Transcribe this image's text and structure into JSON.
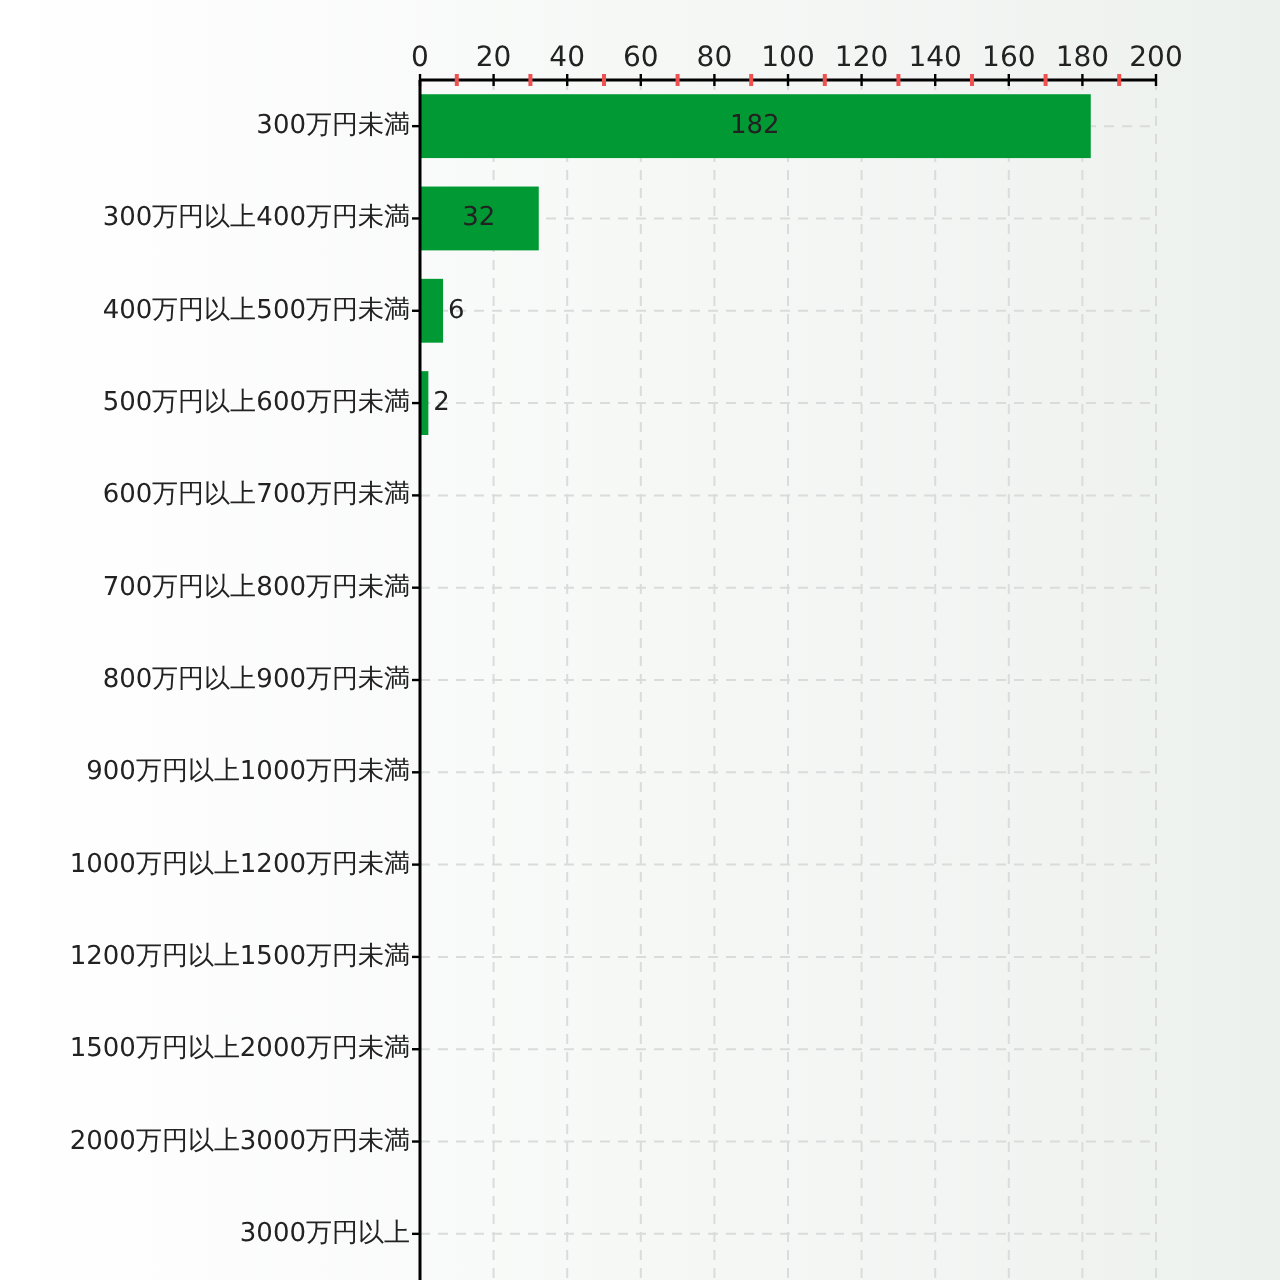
{
  "chart_data": {
    "type": "bar",
    "orientation": "horizontal",
    "categories": [
      "300万円未満",
      "300万円以上400万円未満",
      "400万円以上500万円未満",
      "500万円以上600万円未満",
      "600万円以上700万円未満",
      "700万円以上800万円未満",
      "800万円以上900万円未満",
      "900万円以上1000万円未満",
      "1000万円以上1200万円未満",
      "1200万円以上1500万円未満",
      "1500万円以上2000万円未満",
      "2000万円以上3000万円未満",
      "3000万円以上"
    ],
    "values": [
      182,
      32,
      6,
      2,
      0,
      0,
      0,
      0,
      0,
      0,
      0,
      0,
      0
    ],
    "value_labels": [
      "182",
      "32",
      "6",
      "2",
      null,
      null,
      null,
      null,
      null,
      null,
      null,
      null,
      null
    ],
    "color": "#009933",
    "xlim": [
      0,
      200
    ],
    "xticks": [
      0,
      {
        "value": 10,
        "label": null
      },
      20,
      {
        "value": 30,
        "label": null
      },
      40,
      {
        "value": 50,
        "label": null
      },
      60,
      {
        "value": 70,
        "label": null
      },
      80,
      {
        "value": 90,
        "label": null
      },
      100,
      {
        "value": 110,
        "label": null
      },
      120,
      {
        "value": 130,
        "label": null
      },
      140,
      {
        "value": 150,
        "label": null
      },
      160,
      {
        "value": 170,
        "label": null
      },
      180,
      {
        "value": 190,
        "label": null
      },
      200
    ],
    "grid": true
  }
}
